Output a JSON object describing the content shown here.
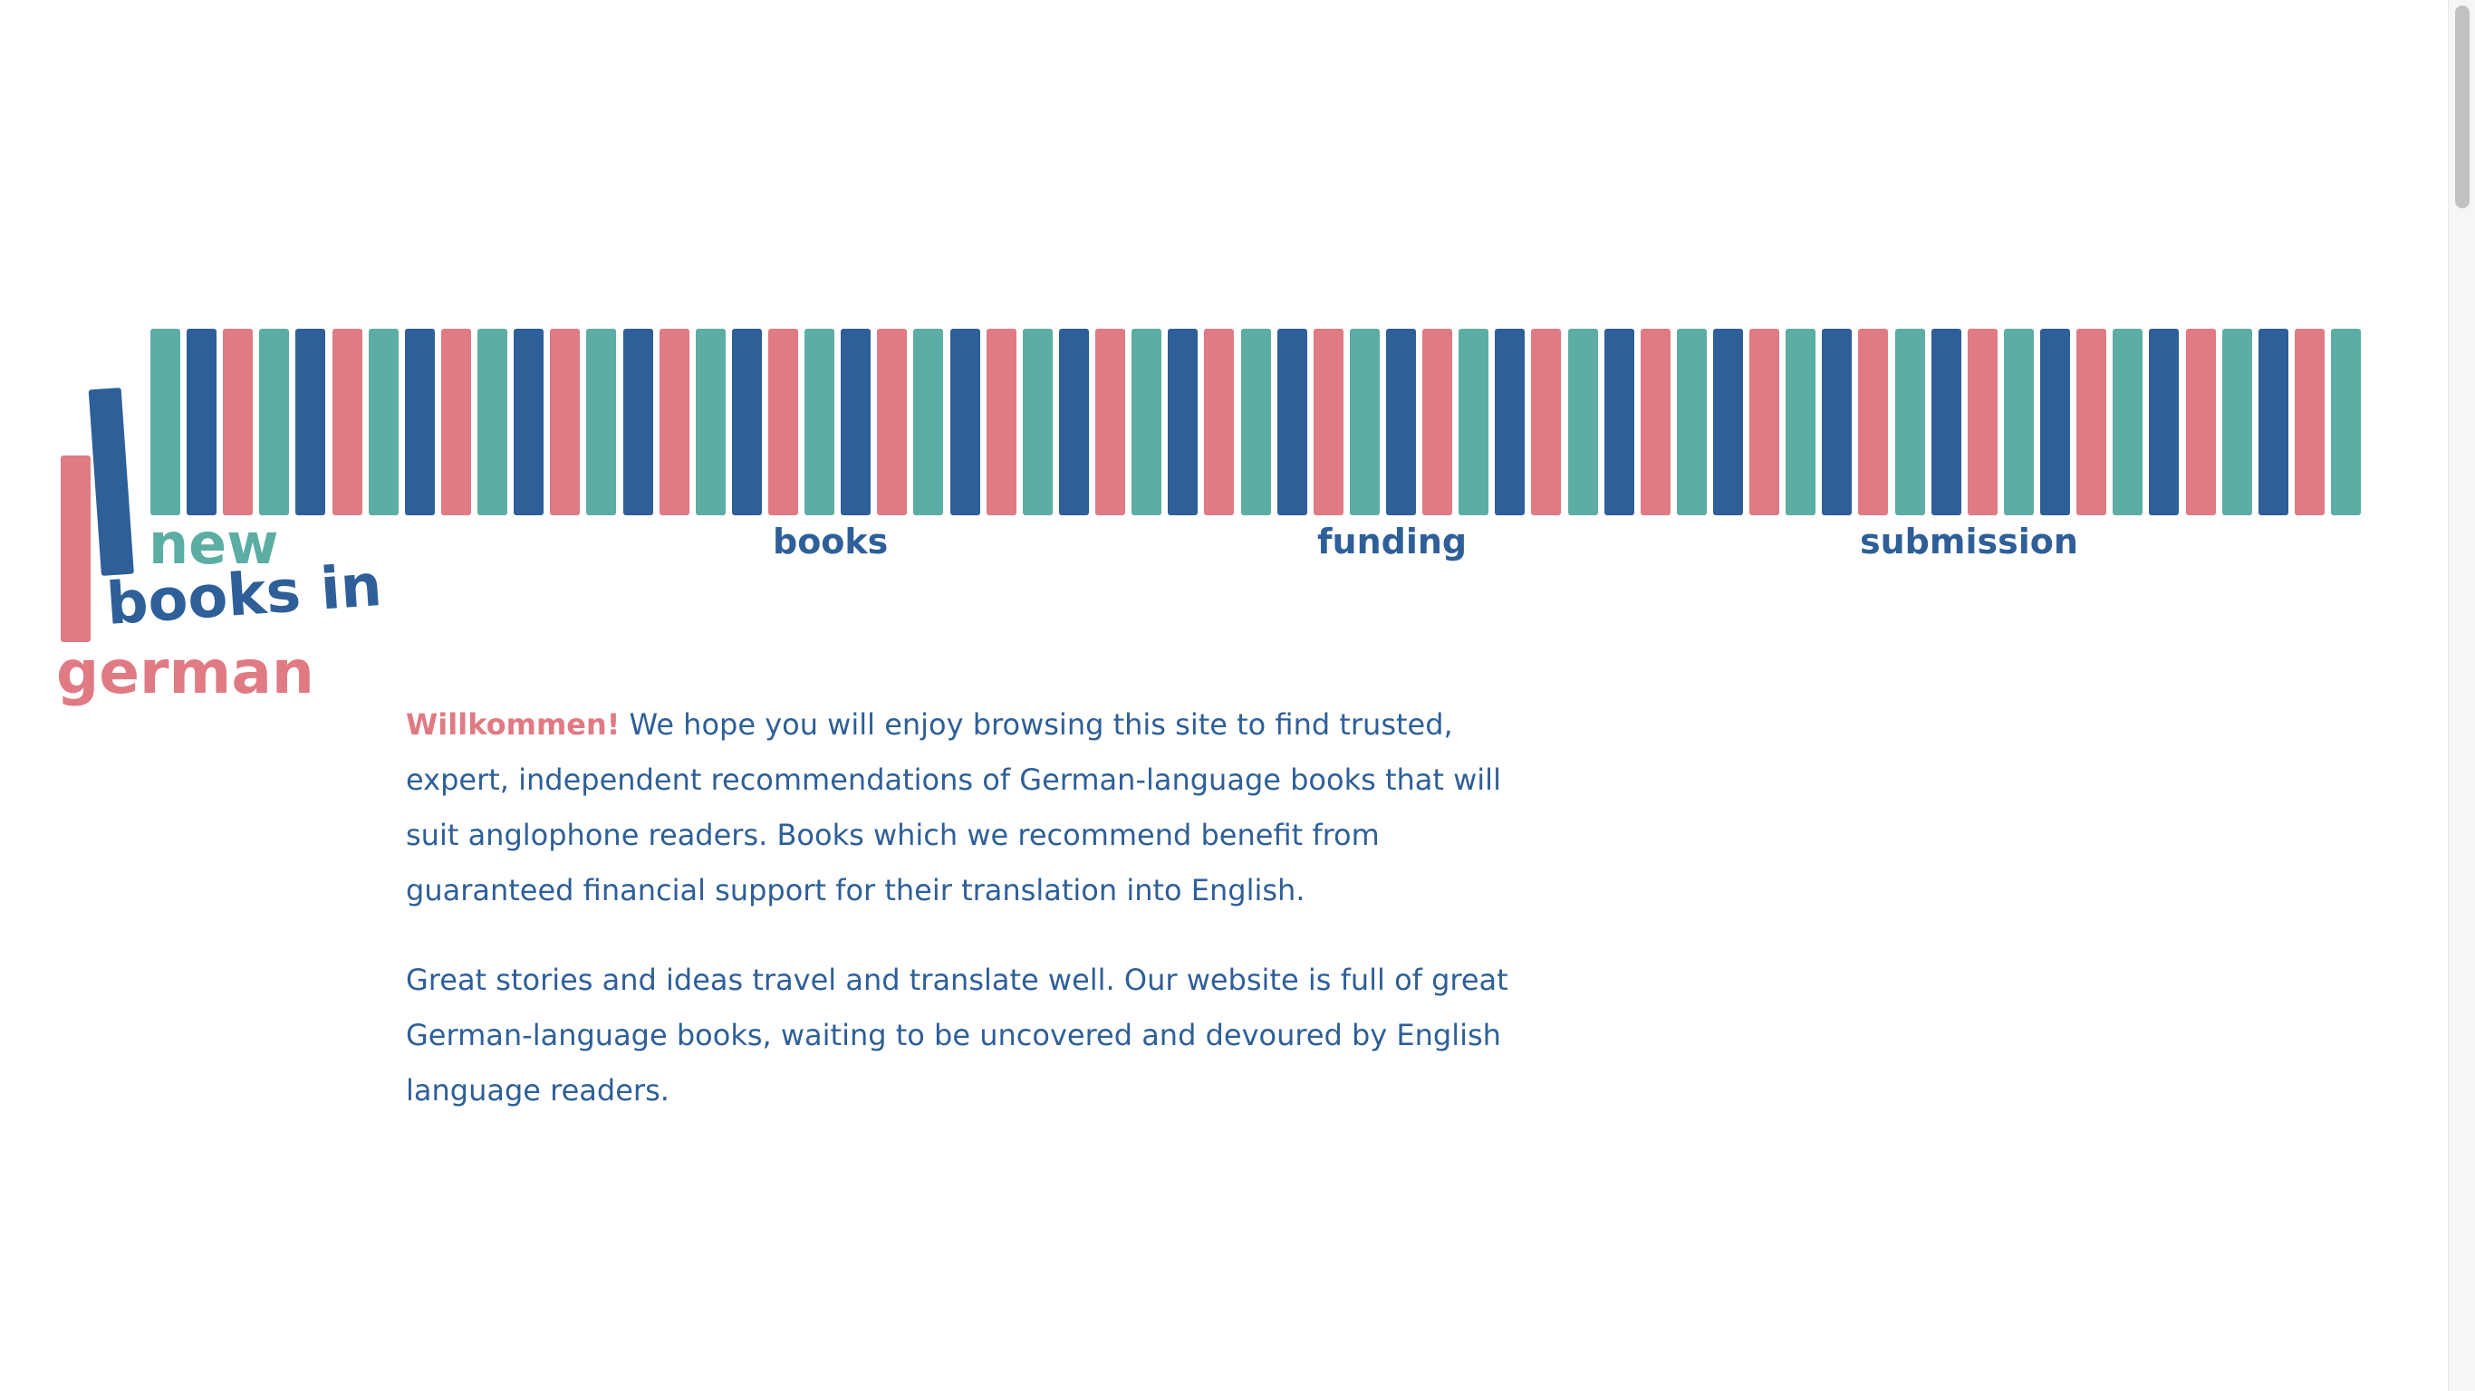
{
  "colors": {
    "teal": "#5cada3",
    "blue": "#2e5f98",
    "pink": "#e07a83"
  },
  "header": {
    "spine_pattern": [
      "teal",
      "blue",
      "pink"
    ],
    "spine_count": 61,
    "logo": {
      "line1": "new",
      "line2": "books in",
      "line3": "german"
    },
    "nav": [
      {
        "label": "books"
      },
      {
        "label": "funding"
      },
      {
        "label": "submission"
      }
    ]
  },
  "main": {
    "intro_highlight": "Willkommen!",
    "intro_text": " We hope you will enjoy browsing this site to find trusted, expert, independent recommendations of German-language books that will suit anglophone readers. Books which we recommend benefit from guaranteed financial support for their translation into English.",
    "paragraph2": "Great stories and ideas travel and translate well. Our website is full of great German-language books, waiting to be uncovered and devoured by English language readers."
  }
}
